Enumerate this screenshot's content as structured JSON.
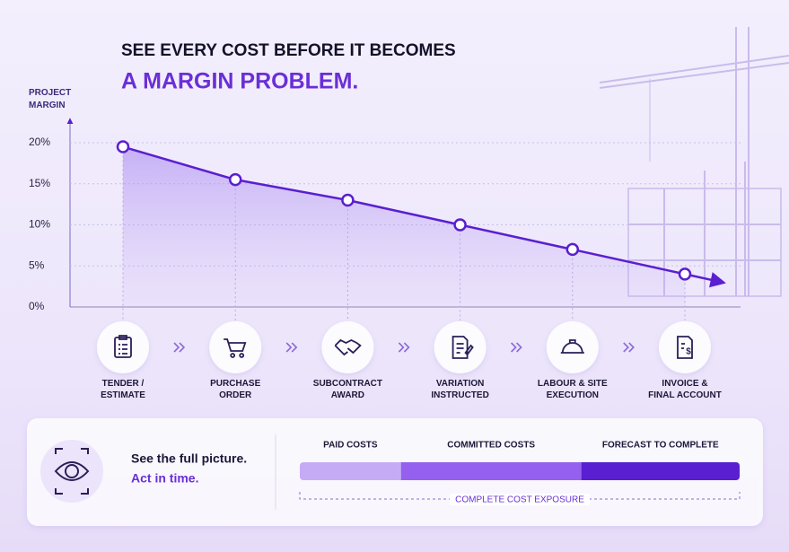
{
  "chart_data": [
    {
      "type": "area",
      "title": "SEE EVERY COST BEFORE IT BECOMES",
      "title_highlight": "A MARGIN PROBLEM.",
      "y_label": "PROJECT\nMARGIN",
      "categories": [
        "TENDER /\nESTIMATE",
        "PURCHASE\nORDER",
        "SUBCONTRACT\nAWARD",
        "VARIATION\nINSTRUCTED",
        "LABOUR & SITE\nEXECUTION",
        "INVOICE &\nFINAL ACCOUNT"
      ],
      "values": [
        19.5,
        15.5,
        13,
        10,
        7,
        4
      ],
      "color": "#5a1fd0",
      "ylim": [
        0,
        23
      ],
      "yticks": [
        {
          "value": 0,
          "label": "0%"
        },
        {
          "value": 5,
          "label": "5%"
        },
        {
          "value": 10,
          "label": "10%"
        },
        {
          "value": 15,
          "label": "15%"
        },
        {
          "value": 20,
          "label": "20%"
        }
      ],
      "grid": true
    },
    {
      "type": "stacked-bar",
      "series": [
        {
          "name": "PAID COSTS",
          "color": "#c5abf5",
          "values": [
            23
          ]
        },
        {
          "name": "COMMITTED COSTS",
          "color": "#9560ef",
          "values": [
            41
          ]
        },
        {
          "name": "FORECAST TO COMPLETE",
          "color": "#5a1fd0",
          "values": [
            36
          ]
        }
      ],
      "xlim": [
        0,
        100
      ],
      "annotation": "COMPLETE COST EXPOSURE"
    }
  ],
  "message": {
    "line1": "See the full picture.",
    "line2": "Act in time."
  }
}
